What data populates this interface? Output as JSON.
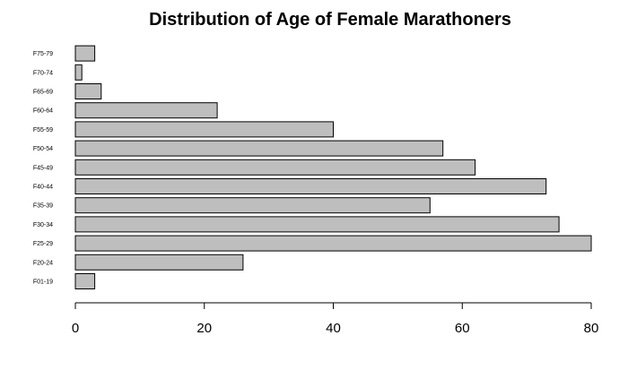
{
  "chart_data": {
    "type": "bar",
    "orientation": "horizontal",
    "title": "Distribution of Age of Female Marathoners",
    "xlabel": "",
    "ylabel": "",
    "categories": [
      "F01-19",
      "F20-24",
      "F25-29",
      "F30-34",
      "F35-39",
      "F40-44",
      "F45-49",
      "F50-54",
      "F55-59",
      "F60-64",
      "F65-69",
      "F70-74",
      "F75-79"
    ],
    "values": [
      3,
      26,
      80,
      75,
      55,
      73,
      62,
      57,
      40,
      22,
      4,
      1,
      3
    ],
    "xlim": [
      0,
      80
    ],
    "xticks": [
      0,
      20,
      40,
      60,
      80
    ],
    "grid": false,
    "bar_color": "#bebebe",
    "edge_color": "#000000"
  }
}
